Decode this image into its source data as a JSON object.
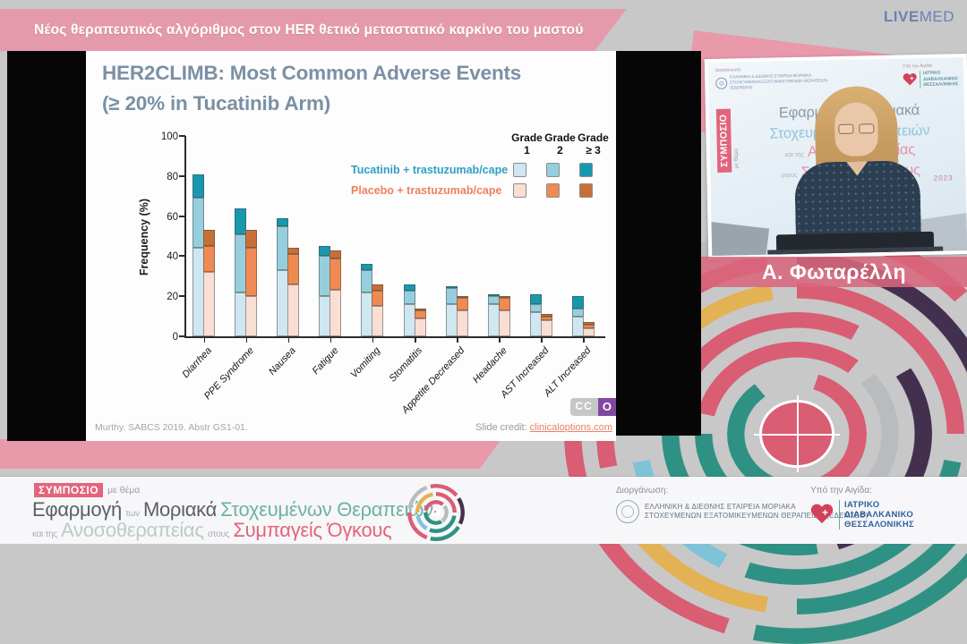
{
  "header": {
    "title": "Νέος θεραπευτικός αλγόριθμος στον HER θετικό μεταστατικό καρκίνο του μαστού",
    "brand_live": "LIVE",
    "brand_med": "MED"
  },
  "slide": {
    "title_line1": "HER2CLIMB: Most Common Adverse Events",
    "title_line2": "(≥ 20% in Tucatinib Arm)",
    "footnote": "Murthy. SABCS 2019. Abstr GS1-01.",
    "credit_label": "Slide credit: ",
    "credit_link": "clinicaloptions.com",
    "cco_cc": "CC",
    "cco_o": "O"
  },
  "chart_data": {
    "type": "bar",
    "stacked": true,
    "title": "HER2CLIMB: Most Common Adverse Events (≥ 20% in Tucatinib Arm)",
    "xlabel": "",
    "ylabel": "Frequency (%)",
    "ylim": [
      0,
      100
    ],
    "yticks": [
      0,
      20,
      40,
      60,
      80,
      100
    ],
    "grid": false,
    "legend_position": "upper right",
    "categories": [
      "Diarrhea",
      "PPE Syndrome",
      "Nausea",
      "Fatigue",
      "Vomiting",
      "Stomatitis",
      "Appetite Decreased",
      "Headache",
      "AST Increased",
      "ALT Increased"
    ],
    "grades": [
      {
        "line1": "Grade",
        "line2": "1"
      },
      {
        "line1": "Grade",
        "line2": "2"
      },
      {
        "line1": "Grade",
        "line2": "≥ 3"
      }
    ],
    "series": [
      {
        "name": "Tucatinib + trastuzumab/cape",
        "text_color": "#2e9fc4",
        "grade_colors": [
          "#cfe7f0",
          "#96cede",
          "#1898ad"
        ],
        "values_grade123_pct": [
          [
            44,
            25,
            12
          ],
          [
            22,
            29,
            13
          ],
          [
            33,
            22,
            4
          ],
          [
            20,
            20,
            5
          ],
          [
            22,
            11,
            3
          ],
          [
            16,
            7,
            3
          ],
          [
            16,
            8,
            1
          ],
          [
            16,
            4,
            1
          ],
          [
            12,
            4,
            5
          ],
          [
            10,
            4,
            6
          ]
        ],
        "totals_pct": [
          81,
          64,
          59,
          45,
          36,
          26,
          25,
          21,
          21,
          20
        ]
      },
      {
        "name": "Placebo + trastuzumab/cape",
        "text_color": "#ef7f5c",
        "grade_colors": [
          "#f9ded4",
          "#ef8b52",
          "#c86f38"
        ],
        "values_grade123_pct": [
          [
            32,
            13,
            8
          ],
          [
            20,
            24,
            9
          ],
          [
            26,
            15,
            3
          ],
          [
            23,
            16,
            4
          ],
          [
            15,
            8,
            3
          ],
          [
            9,
            4,
            1
          ],
          [
            13,
            6,
            1
          ],
          [
            13,
            6,
            1
          ],
          [
            8,
            2,
            1
          ],
          [
            4,
            2,
            1
          ]
        ],
        "totals_pct": [
          53,
          53,
          44,
          43,
          26,
          14,
          20,
          20,
          11,
          7
        ]
      }
    ]
  },
  "speaker_panel": {
    "name": "Α. Φωταρέλλη",
    "poster": {
      "organizer_label": "Διοργάνωση:",
      "organizer_line1": "ΕΛΛΗΝΙΚΗ & ΔΙΕΘΝΗΣ ΕΤΑΙΡΕΙΑ ΜΟΡΙΑΚΑ",
      "organizer_line2": "ΣΤΟΧΕΥΜΕΝΩΝ ΕΞΑΤΟΜΙΚΕΥΜΕΝΩΝ ΘΕΡΑΠΕΙΩΝ (ΕΔΕΜΣΕΘ)",
      "aegis_label": "Υπό την Αιγίδα",
      "aegis_line1": "ΙΑΤΡΙΚΟ",
      "aegis_line2": "ΔΙΑΒΑΛΚΑΝΙΚΟ",
      "aegis_line3": "ΘΕΣΣΑΛΟΝΙΚΗΣ",
      "symposium": "ΣΥΜΠΟΣΙΟ",
      "symposium_sub": "με θέμα",
      "w1": "Εφαρμογή",
      "w2": "των",
      "w3": "Μοριακά",
      "w4": "Στοχευμένων Θεραπειών",
      "w5": "και της",
      "w6": "Ανοσοθεραπείας",
      "w7": "στους",
      "w8": "Συμπαγείς Όγκους",
      "year": "2023"
    }
  },
  "footer": {
    "badge": "ΣΥΜΠΟΣΙΟ",
    "badge_sub": "με θέμα",
    "w1": "Εφαρμογή",
    "w2": "των",
    "w3": "Μοριακά",
    "w4": "Στοχευμένων Θεραπειών",
    "w5": "και της",
    "w6": "Ανοσοθεραπείας",
    "w7": "στους",
    "w8": "Συμπαγείς Όγκους",
    "organizer_label": "Διοργάνωση:",
    "organizer_line1": "ΕΛΛΗΝΙΚΗ & ΔΙΕΘΝΗΣ ΕΤΑΙΡΕΙΑ ΜΟΡΙΑΚΑ",
    "organizer_line2": "ΣΤΟΧΕΥΜΕΝΩΝ ΕΞΑΤΟΜΙΚΕΥΜΕΝΩΝ ΘΕΡΑΠΕΙΩΝ (ΕΔΕΜΣΕΘ)",
    "aegis_label": "Υπό την Αιγίδα:",
    "aegis_line1": "ΙΑΤΡΙΚΟ",
    "aegis_line2": "ΔΙΑΒΑΛΚΑΝΙΚΟ",
    "aegis_line3": "ΘΕΣΣΑΛΟΝΙΚΗΣ"
  },
  "accent_colors": {
    "banner_pink": "#e59aab",
    "badge_pink": "#e4647c",
    "nameplate_pink": "#d8677c",
    "brand_blue": "#6a82b4",
    "slide_title_gray": "#7b90a4",
    "credit_link_orange": "#e8836a",
    "maze_pink": "#d95d73",
    "maze_teal": "#2f9183",
    "maze_purple": "#43304e",
    "maze_yellow": "#e3b254"
  }
}
